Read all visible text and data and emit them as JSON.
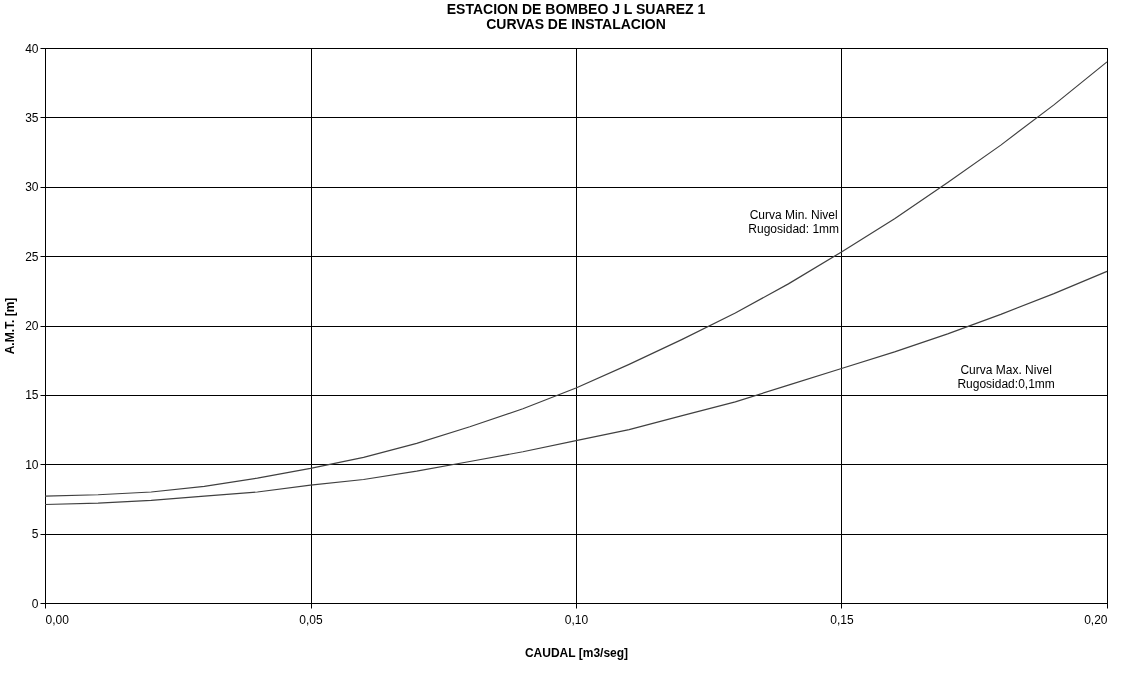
{
  "chart_data": {
    "type": "line",
    "title": "ESTACION DE BOMBEO J L SUAREZ 1",
    "subtitle": "CURVAS DE INSTALACION",
    "xlabel": "CAUDAL  [m3/seg]",
    "ylabel": "A.M.T. [m]",
    "x": [
      0,
      0.01,
      0.02,
      0.03,
      0.04,
      0.05,
      0.06,
      0.07,
      0.08,
      0.09,
      0.1,
      0.11,
      0.12,
      0.13,
      0.14,
      0.15,
      0.16,
      0.17,
      0.18,
      0.19,
      0.2
    ],
    "series": [
      {
        "color": "#404040",
        "values": [
          7.7,
          7.8,
          8.0,
          8.4,
          9.0,
          9.7,
          10.5,
          11.5,
          12.7,
          14.0,
          15.5,
          17.2,
          19.0,
          20.9,
          23.0,
          25.3,
          27.7,
          30.3,
          33.0,
          35.9,
          39.0
        ]
      },
      {
        "color": "#404040",
        "values": [
          7.1,
          7.2,
          7.4,
          7.7,
          8.0,
          8.5,
          8.9,
          9.5,
          10.2,
          10.9,
          11.7,
          12.5,
          13.5,
          14.5,
          15.7,
          16.9,
          18.1,
          19.4,
          20.8,
          22.3,
          23.9
        ]
      }
    ],
    "xlim": [
      0,
      0.2
    ],
    "ylim": [
      0,
      40
    ],
    "xticks": [
      {
        "value": 0,
        "label": "0,00"
      },
      {
        "value": 0.05,
        "label": "0,05"
      },
      {
        "value": 0.1,
        "label": "0,10"
      },
      {
        "value": 0.15,
        "label": "0,15"
      },
      {
        "value": 0.2,
        "label": "0,20"
      }
    ],
    "yticks": [
      0,
      5,
      10,
      15,
      20,
      25,
      30,
      35,
      40
    ],
    "grid": true,
    "marker": "none",
    "line_style": "solid",
    "annotations": [
      "Curva Min. Nivel\nRugosidad: 1mm",
      "Curva Max. Nivel\nRugosidad:0,1mm"
    ]
  }
}
